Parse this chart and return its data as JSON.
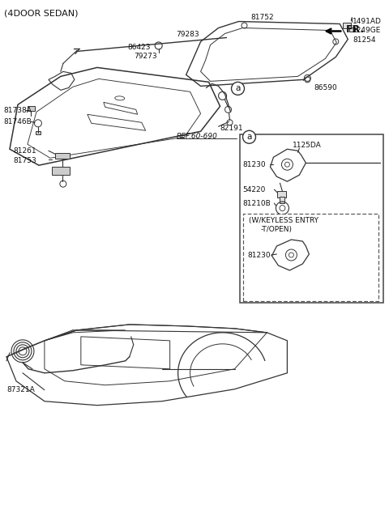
{
  "bg_color": "#ffffff",
  "line_color": "#333333",
  "text_color": "#111111",
  "labels": {
    "header": "(4DOOR SEDAN)",
    "fr_label": "FR.",
    "part_81752": "81752",
    "part_1491AD": "1491AD",
    "part_1249GE": "1249GE",
    "part_81254": "81254",
    "part_86590": "86590",
    "part_79283": "79283",
    "part_86423": "86423",
    "part_79273": "79273",
    "part_82191": "82191",
    "part_ref": "REF.60-690",
    "part_81738A": "81738A",
    "part_81746B": "81746B",
    "part_81261": "81261",
    "part_81753": "81753",
    "part_a": "a",
    "box_a": "a",
    "part_1125DA": "1125DA",
    "part_81230": "81230",
    "part_54220": "54220",
    "part_81210B": "81210B",
    "keyless_text1": "(W/KEYLESS ENTRY",
    "keyless_text2": "-T/OPEN)",
    "part_81230b": "81230",
    "part_87321A": "87321A"
  },
  "figsize": [
    4.8,
    6.56
  ],
  "dpi": 100
}
